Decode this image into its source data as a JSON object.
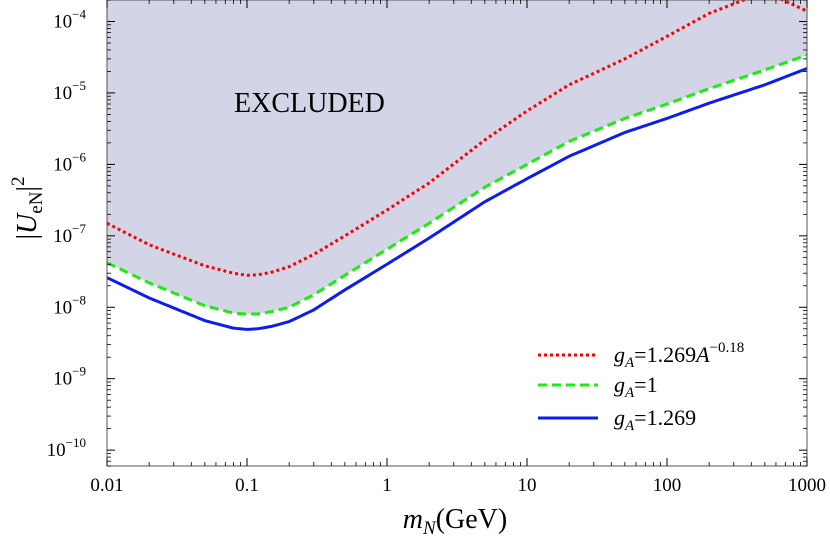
{
  "chart_data": {
    "type": "line",
    "title": "",
    "xlabel": "m_N(GeV)",
    "xlabel_parts": {
      "var": "m",
      "sub": "N",
      "unit": "(GeV)"
    },
    "ylabel": "|U_eN|^2",
    "ylabel_parts": {
      "open": "|",
      "var": "U",
      "sub": "eN",
      "close": "|",
      "sup": "2"
    },
    "x_scale": "log",
    "y_scale": "log",
    "xlim": [
      0.01,
      1000
    ],
    "ylim": [
      6e-11,
      0.0002
    ],
    "x_ticks": [
      {
        "value": 0.01,
        "label": "0.01"
      },
      {
        "value": 0.1,
        "label": "0.1"
      },
      {
        "value": 1,
        "label": "1"
      },
      {
        "value": 10,
        "label": "10"
      },
      {
        "value": 100,
        "label": "100"
      },
      {
        "value": 1000,
        "label": "1000"
      }
    ],
    "y_ticks": [
      {
        "value": 1e-10,
        "base": "10",
        "exp": "−10"
      },
      {
        "value": 1e-09,
        "base": "10",
        "exp": "−9"
      },
      {
        "value": 1e-08,
        "base": "10",
        "exp": "−8"
      },
      {
        "value": 1e-07,
        "base": "10",
        "exp": "−7"
      },
      {
        "value": 1e-06,
        "base": "10",
        "exp": "−6"
      },
      {
        "value": 1e-05,
        "base": "10",
        "exp": "−5"
      },
      {
        "value": 0.0001,
        "base": "10",
        "exp": "−4"
      }
    ],
    "grid": false,
    "legend_position": "bottom-right",
    "annotation": "EXCLUDED",
    "excluded_region": {
      "fill": "#d3d5e6",
      "bounded_by": "gA=1 series, above"
    },
    "series": [
      {
        "name_parts": {
          "var": "g",
          "sub": "A",
          "rest": "=1.269",
          "base2": "A",
          "sup": "−0.18"
        },
        "color": "#ff0000",
        "style": "dotted",
        "x": [
          0.01,
          0.02,
          0.05,
          0.08,
          0.1,
          0.12,
          0.15,
          0.2,
          0.3,
          0.5,
          1,
          2,
          5,
          10,
          20,
          50,
          100,
          200,
          500,
          1000
        ],
        "y": [
          1.5e-07,
          7.5e-08,
          3.8e-08,
          3e-08,
          2.8e-08,
          2.85e-08,
          3.1e-08,
          3.7e-08,
          5.5e-08,
          1e-07,
          2.3e-07,
          5.5e-07,
          2.2e-06,
          5.6e-06,
          1.3e-05,
          3e-05,
          6.2e-05,
          0.00013,
          0.00026,
          0.00014
        ]
      },
      {
        "name_parts": {
          "var": "g",
          "sub": "A",
          "rest": "=1"
        },
        "color": "#19ee0f",
        "style": "dashed",
        "x": [
          0.01,
          0.02,
          0.05,
          0.08,
          0.1,
          0.12,
          0.15,
          0.2,
          0.3,
          0.5,
          1,
          2,
          5,
          10,
          20,
          50,
          100,
          200,
          500,
          1000
        ],
        "y": [
          4.2e-08,
          2.2e-08,
          1.05e-08,
          8.3e-09,
          8e-09,
          8.1e-09,
          8.7e-09,
          1e-08,
          1.5e-08,
          2.8e-08,
          6.5e-08,
          1.5e-07,
          4.8e-07,
          1e-06,
          2.1e-06,
          4.4e-06,
          7e-06,
          1.15e-05,
          2.1e-05,
          3.4e-05
        ]
      },
      {
        "name_parts": {
          "var": "g",
          "sub": "A",
          "rest": "=1.269"
        },
        "color": "#0d1cf0",
        "style": "solid",
        "x": [
          0.01,
          0.02,
          0.05,
          0.08,
          0.1,
          0.12,
          0.15,
          0.2,
          0.3,
          0.5,
          1,
          2,
          5,
          10,
          20,
          50,
          100,
          200,
          500,
          1000
        ],
        "y": [
          2.6e-08,
          1.35e-08,
          6.5e-09,
          5.1e-09,
          4.9e-09,
          5e-09,
          5.4e-09,
          6.3e-09,
          9.2e-09,
          1.75e-08,
          4e-08,
          9.3e-08,
          3e-07,
          6.3e-07,
          1.3e-06,
          2.8e-06,
          4.4e-06,
          7.2e-06,
          1.3e-05,
          2.2e-05
        ]
      }
    ]
  }
}
